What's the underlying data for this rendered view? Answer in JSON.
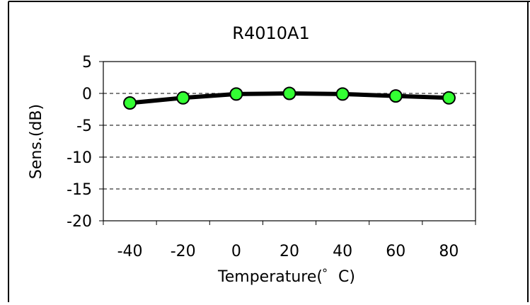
{
  "chart_data": {
    "type": "line",
    "title": "R4010A1",
    "xlabel": "Temperature(゜C)",
    "ylabel": "Sens.(dB)",
    "x": [
      -40,
      -20,
      0,
      20,
      40,
      60,
      80
    ],
    "xticks": [
      "-40",
      "-20",
      "0",
      "20",
      "40",
      "60",
      "80"
    ],
    "yticks": [
      "5",
      "0",
      "-5",
      "-10",
      "-15",
      "-20"
    ],
    "ylim": [
      -20,
      5
    ],
    "xlim": [
      -50,
      90
    ],
    "grid": "horizontal-dashed",
    "series": [
      {
        "values": [
          -1.5,
          -0.7,
          -0.1,
          0.0,
          -0.1,
          -0.4,
          -0.7
        ],
        "line_color": "#000000",
        "marker_color": "#33ff33"
      }
    ]
  }
}
